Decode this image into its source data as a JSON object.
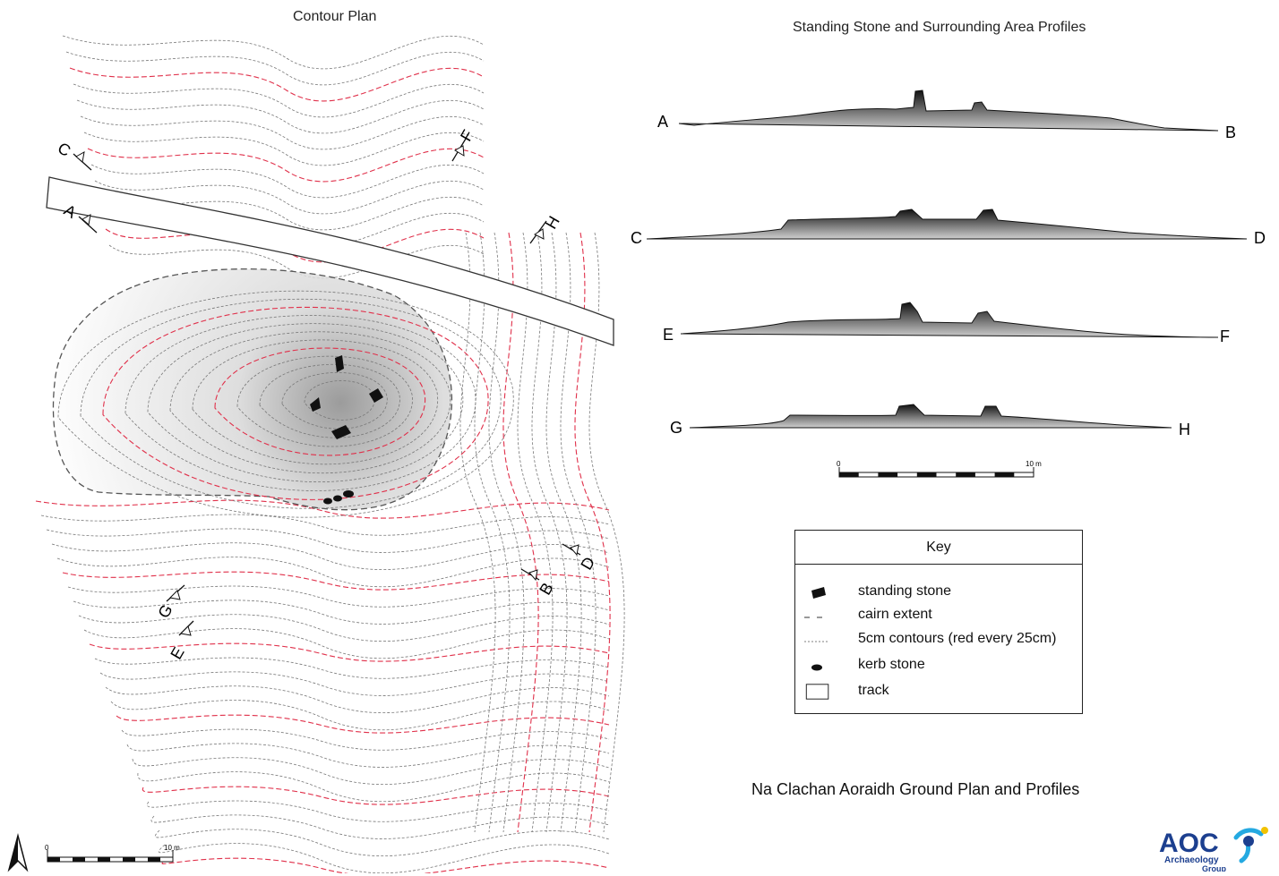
{
  "titles": {
    "contour_plan": "Contour Plan",
    "profiles": "Standing Stone and Surrounding Area Profiles",
    "main": "Na Clachan Aoraidh  Ground Plan and Profiles"
  },
  "plan": {
    "section_markers": [
      "A",
      "B",
      "C",
      "D",
      "E",
      "F",
      "G",
      "H"
    ],
    "scale_bar": {
      "start": "0",
      "end": "10 m"
    }
  },
  "profiles": {
    "rows": [
      {
        "left": "A",
        "right": "B"
      },
      {
        "left": "C",
        "right": "D"
      },
      {
        "left": "E",
        "right": "F"
      },
      {
        "left": "G",
        "right": "H"
      }
    ],
    "scale_bar": {
      "start": "0",
      "end": "10 m"
    }
  },
  "key": {
    "title": "Key",
    "items": [
      {
        "symbol": "standing-stone",
        "label": "standing stone"
      },
      {
        "symbol": "cairn-extent",
        "label": "cairn extent"
      },
      {
        "symbol": "contours",
        "label": "5cm contours (red every 25cm)"
      },
      {
        "symbol": "kerb-stone",
        "label": "kerb stone"
      },
      {
        "symbol": "track",
        "label": "track"
      }
    ]
  },
  "logo": {
    "brand": "AOC",
    "line1": "Archaeology",
    "line2": "Group"
  },
  "colors": {
    "contour": "#777777",
    "contour_red": "#e0304a",
    "ink": "#111111",
    "logo_blue": "#1c3f8f",
    "logo_cyan": "#24a9e1",
    "logo_yellow": "#f2c200"
  }
}
